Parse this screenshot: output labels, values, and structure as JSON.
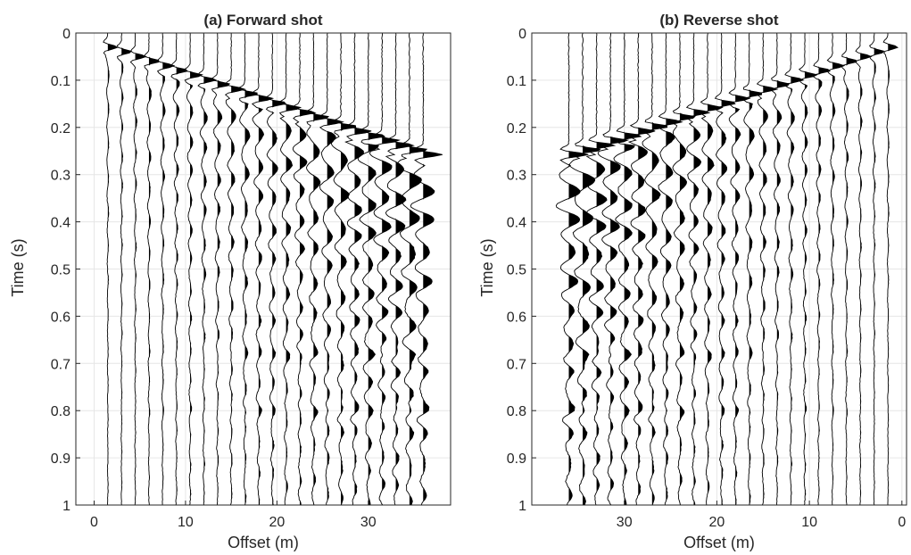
{
  "colors": {
    "trace": "#000000",
    "axis": "#262626",
    "grid": "#e6e6e6",
    "background": "#ffffff"
  },
  "chart_data": [
    {
      "type": "seismic-wiggle",
      "title": "(a) Forward shot",
      "xlabel": "Offset (m)",
      "ylabel": "Time (s)",
      "xlim": [
        -2,
        39
      ],
      "ylim": [
        0,
        1
      ],
      "y_reversed": true,
      "x_reversed": false,
      "grid": true,
      "xticks": [
        0,
        10,
        20,
        30
      ],
      "yticks": [
        0,
        0.1,
        0.2,
        0.3,
        0.4,
        0.5,
        0.6,
        0.7,
        0.8,
        0.9,
        1
      ],
      "trace_offsets": [
        1.5,
        3,
        4.5,
        6,
        7.5,
        9,
        10.5,
        12,
        13.5,
        15,
        16.5,
        18,
        19.5,
        21,
        22.5,
        24,
        25.5,
        27,
        28.5,
        30,
        31.5,
        33,
        34.5,
        36
      ],
      "first_break": {
        "source_offset": 0,
        "intercept_s": 0.02,
        "slowness_s_per_m": 0.0066
      }
    },
    {
      "type": "seismic-wiggle",
      "title": "(b) Reverse shot",
      "xlabel": "Offset (m)",
      "ylabel": "Time (s)",
      "xlim": [
        -0.5,
        40
      ],
      "ylim": [
        0,
        1
      ],
      "y_reversed": true,
      "x_reversed": true,
      "grid": true,
      "xticks": [
        0,
        10,
        20,
        30
      ],
      "yticks": [
        0,
        0.1,
        0.2,
        0.3,
        0.4,
        0.5,
        0.6,
        0.7,
        0.8,
        0.9,
        1
      ],
      "trace_offsets": [
        1.5,
        3,
        4.5,
        6,
        7.5,
        9,
        10.5,
        12,
        13.5,
        15,
        16.5,
        18,
        19.5,
        21,
        22.5,
        24,
        25.5,
        27,
        28.5,
        30,
        31.5,
        33,
        34.5,
        36
      ],
      "first_break": {
        "source_offset": 0,
        "intercept_s": 0.02,
        "slowness_s_per_m": 0.0066
      }
    }
  ]
}
